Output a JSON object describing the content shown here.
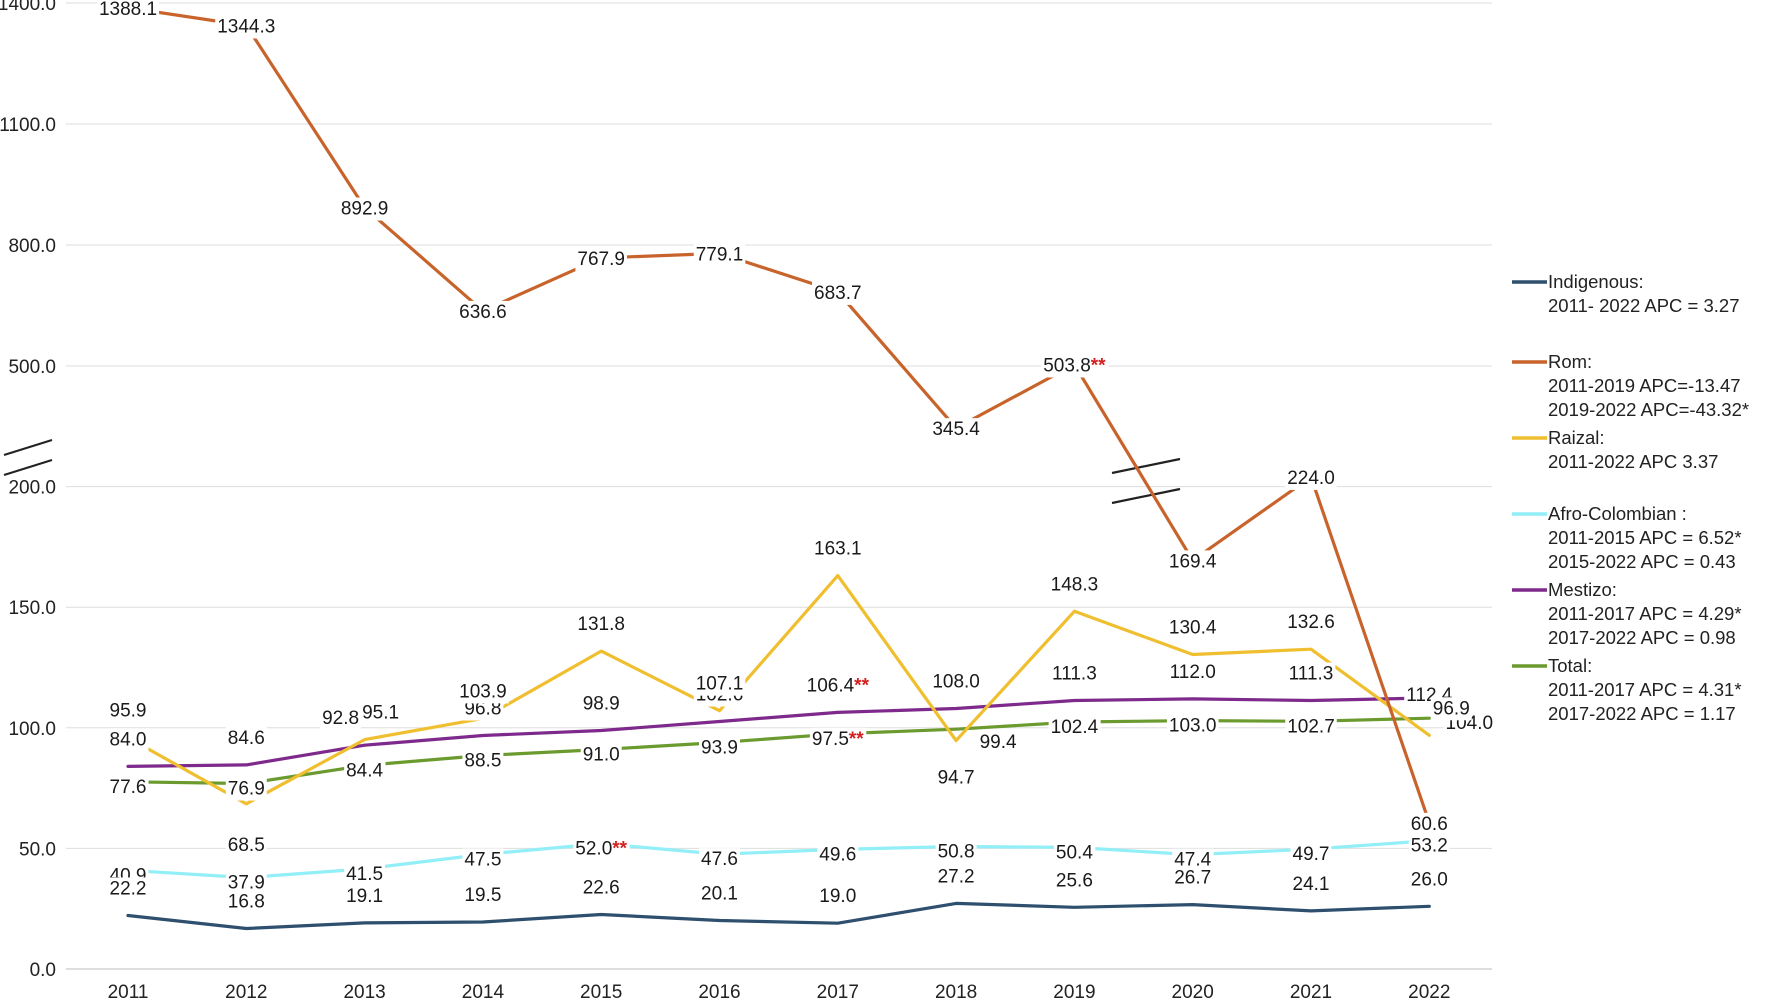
{
  "chart_data": {
    "type": "line",
    "title": "",
    "xlabel": "",
    "ylabel": "",
    "x": [
      2011,
      2012,
      2013,
      2014,
      2015,
      2016,
      2017,
      2018,
      2019,
      2020,
      2021,
      2022
    ],
    "y_ticks": [
      "0.0",
      "50.0",
      "100.0",
      "150.0",
      "200.0",
      "500.0",
      "800.0",
      "1100.0",
      "1400.0"
    ],
    "y_axis_break": "between 200.0 and 500.0",
    "grid": true,
    "legend_position": "right",
    "significance_marker": "**",
    "series": [
      {
        "name": "Indigenous:",
        "apc": [
          "2011- 2022 APC = 3.27"
        ],
        "color": "#2e4f6e",
        "values": [
          22.2,
          16.8,
          19.1,
          19.5,
          22.6,
          20.1,
          19.0,
          27.2,
          25.6,
          26.7,
          24.1,
          26.0
        ],
        "labels": [
          "22.2",
          "16.8",
          "19.1",
          "19.5",
          "22.6",
          "20.1",
          "19.0",
          "27.2",
          "25.6",
          "26.7",
          "24.1",
          "26.0"
        ],
        "marked": []
      },
      {
        "name": "Rom:",
        "apc": [
          "2011-2019 APC=-13.47",
          "2019-2022 APC=-43.32*"
        ],
        "color": "#c8642b",
        "values": [
          1388.1,
          1344.3,
          892.9,
          636.6,
          767.9,
          779.1,
          683.7,
          345.4,
          503.8,
          169.4,
          224.0,
          60.6
        ],
        "labels": [
          "1388.1",
          "1344.3",
          "892.9",
          "636.6",
          "767.9",
          "779.1",
          "683.7",
          "345.4",
          "503.8",
          "169.4",
          "224.0",
          "60.6"
        ],
        "marked": [
          2019
        ]
      },
      {
        "name": "Raizal:",
        "apc": [
          "2011-2022 APC 3.37"
        ],
        "color": "#efbf2f",
        "values": [
          95.9,
          68.5,
          95.1,
          103.9,
          131.8,
          107.1,
          163.1,
          94.7,
          148.3,
          130.4,
          132.6,
          96.9
        ],
        "labels": [
          "95.9",
          "68.5",
          "95.1",
          "103.9",
          "131.8",
          "107.1",
          "163.1",
          "94.7",
          "148.3",
          "130.4",
          "132.6",
          "96.9"
        ],
        "marked": []
      },
      {
        "name": "Afro-Colombian :",
        "apc": [
          "2011-2015 APC = 6.52*",
          "2015-2022 APC = 0.43"
        ],
        "color": "#92eef7",
        "values": [
          40.9,
          37.9,
          41.5,
          47.5,
          52.0,
          47.6,
          49.6,
          50.8,
          50.4,
          47.4,
          49.7,
          53.2
        ],
        "labels": [
          "40.9",
          "37.9",
          "41.5",
          "47.5",
          "52.0",
          "47.6",
          "49.6",
          "50.8",
          "50.4",
          "47.4",
          "49.7",
          "53.2"
        ],
        "marked": [
          2015
        ]
      },
      {
        "name": "Mestizo:",
        "apc": [
          "2011-2017 APC = 4.29*",
          "2017-2022 APC = 0.98"
        ],
        "color": "#7e2a8c",
        "values": [
          84.0,
          84.6,
          92.8,
          96.8,
          98.9,
          102.6,
          106.4,
          108.0,
          111.3,
          112.0,
          111.3,
          112.4
        ],
        "labels": [
          "84.0",
          "84.6",
          "92.8",
          "96.8",
          "98.9",
          "102.6",
          "106.4",
          "108.0",
          "111.3",
          "112.0",
          "111.3",
          "112.4"
        ],
        "marked": [
          2017
        ]
      },
      {
        "name": "Total:",
        "apc": [
          "2011-2017 APC = 4.31*",
          "2017-2022 APC = 1.17"
        ],
        "color": "#6b9a2f",
        "values": [
          77.6,
          76.9,
          84.4,
          88.5,
          91.0,
          93.9,
          97.5,
          99.4,
          102.4,
          103.0,
          102.7,
          104.0
        ],
        "labels": [
          "77.6",
          "76.9",
          "84.4",
          "88.5",
          "91.0",
          "93.9",
          "97.5",
          "99.4",
          "102.4",
          "103.0",
          "102.7",
          "104.0"
        ],
        "marked": [
          2017
        ]
      }
    ]
  }
}
